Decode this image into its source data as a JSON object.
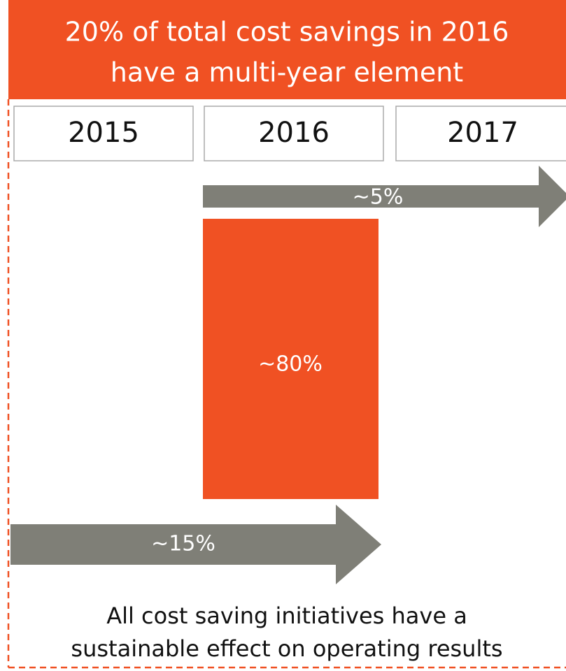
{
  "header": {
    "title_lines": [
      "20% of total cost savings in 2016",
      "have a multi-year element"
    ]
  },
  "years": [
    "2015",
    "2016",
    "2017"
  ],
  "arrows": [
    {
      "label": "~5%"
    },
    {
      "label": "~15%"
    }
  ],
  "block": {
    "label": "~80%"
  },
  "footer": {
    "lines": [
      "All cost saving initiatives have a",
      "sustainable effect on operating results"
    ]
  }
}
